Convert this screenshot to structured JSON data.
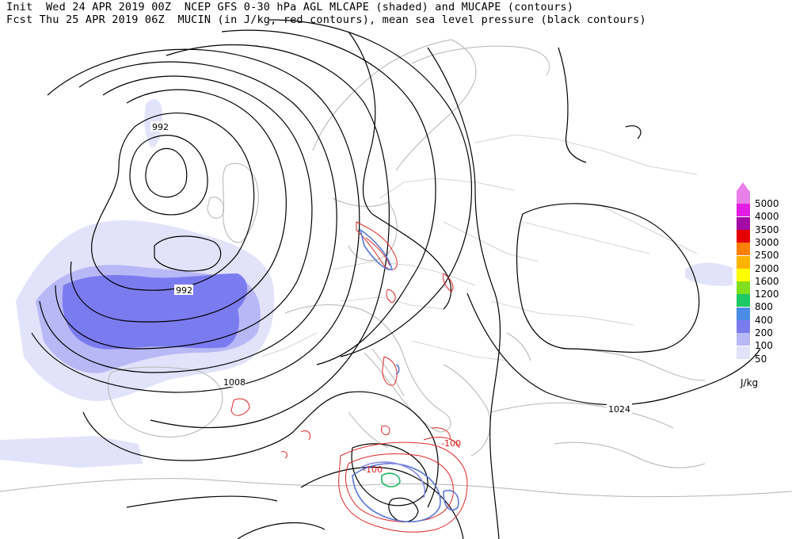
{
  "header": {
    "line1": "Init  Wed 24 APR 2019 00Z  NCEP GFS 0-30 hPa AGL MLCAPE (shaded) and MUCAPE (contours)",
    "line2": "Fcst Thu 25 APR 2019 06Z  MUCIN (in J/kg, red contours), mean sea level pressure (black contours)"
  },
  "legend": {
    "levels": [
      {
        "label": "5000",
        "color": "#e87ee8"
      },
      {
        "label": "4000",
        "color": "#e21ee2"
      },
      {
        "label": "3500",
        "color": "#a40aa4"
      },
      {
        "label": "3000",
        "color": "#e60000"
      },
      {
        "label": "2500",
        "color": "#ff7f00"
      },
      {
        "label": "2000",
        "color": "#ffb300"
      },
      {
        "label": "1600",
        "color": "#ffff00"
      },
      {
        "label": "1200",
        "color": "#80e01e"
      },
      {
        "label": "800",
        "color": "#1ec864"
      },
      {
        "label": "400",
        "color": "#4a8ce8"
      },
      {
        "label": "200",
        "color": "#7b7bf0"
      },
      {
        "label": "100",
        "color": "#b8b8f6"
      },
      {
        "label": "50",
        "color": "#e2e2fa"
      }
    ],
    "units": "J/kg"
  },
  "isobar_labels": [
    "992",
    "992",
    "1008",
    "1024"
  ],
  "mucin_labels": [
    "-100",
    "-100"
  ]
}
